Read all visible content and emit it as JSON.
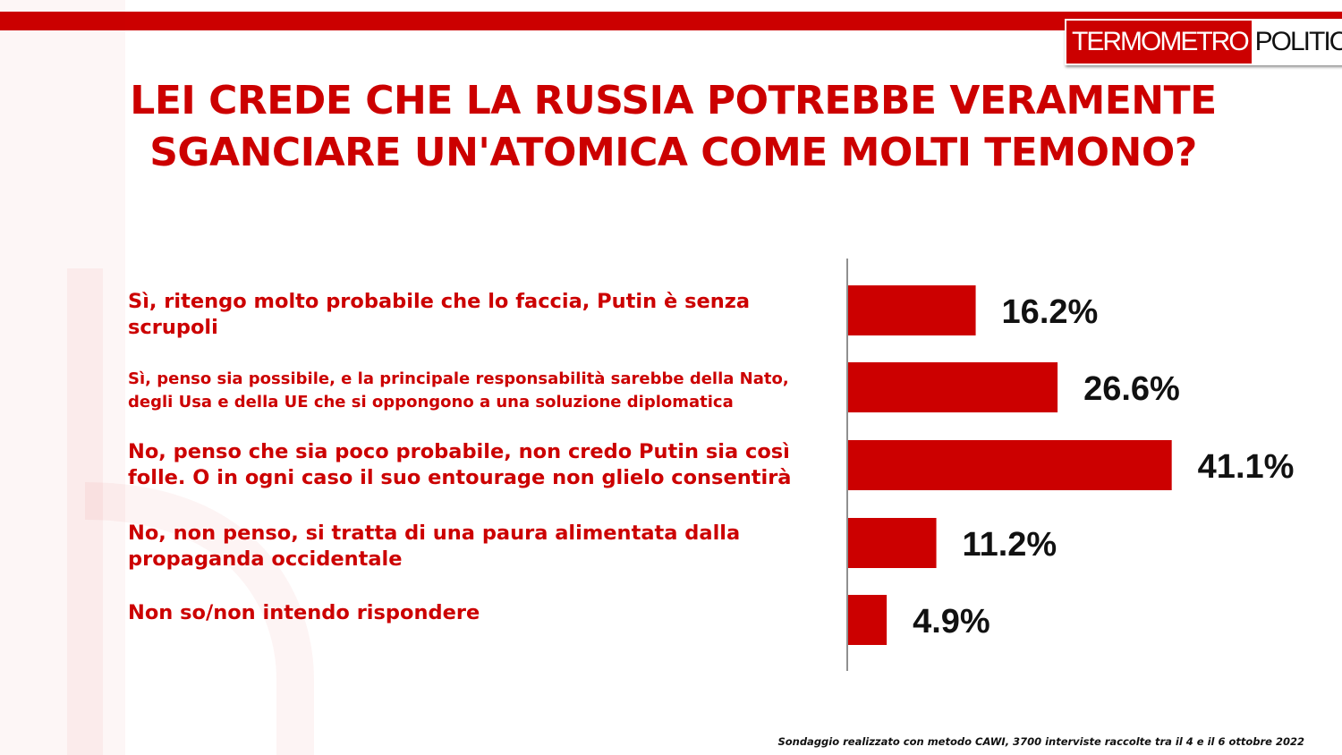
{
  "header": {
    "logo_left": "TERMOMETRO",
    "logo_right": "POLITICO"
  },
  "title_line1": "LEI CREDE CHE LA RUSSIA POTREBBE VERAMENTE",
  "title_line2": "SGANCIARE UN'ATOMICA COME MOLTI TEMONO?",
  "footer": "Sondaggio realizzato con metodo CAWI, 3700 interviste raccolte tra il 4 e il 6 ottobre 2022",
  "colors": {
    "accent": "#cc0000",
    "bar": "#cc0000",
    "value_text": "#111111"
  },
  "chart_data": {
    "type": "bar",
    "orientation": "horizontal",
    "categories": [
      "Sì, ritengo molto probabile che lo faccia, Putin è senza scrupoli",
      "Sì, penso sia possibile, e la principale responsabilità  sarebbe della Nato, degli Usa e della UE che si oppongono a una soluzione diplomatica",
      "No, penso che sia poco probabile, non credo Putin sia così folle. O in ogni caso il suo entourage non glielo consentirà",
      "No, non penso, si tratta di una paura alimentata dalla propaganda occidentale",
      "Non so/non intendo rispondere"
    ],
    "values": [
      16.2,
      26.6,
      41.1,
      11.2,
      4.9
    ],
    "value_labels": [
      "16.2%",
      "26.6%",
      "41.1%",
      "11.2%",
      "4.9%"
    ],
    "unit": "%",
    "grid": false,
    "legend": "none"
  }
}
